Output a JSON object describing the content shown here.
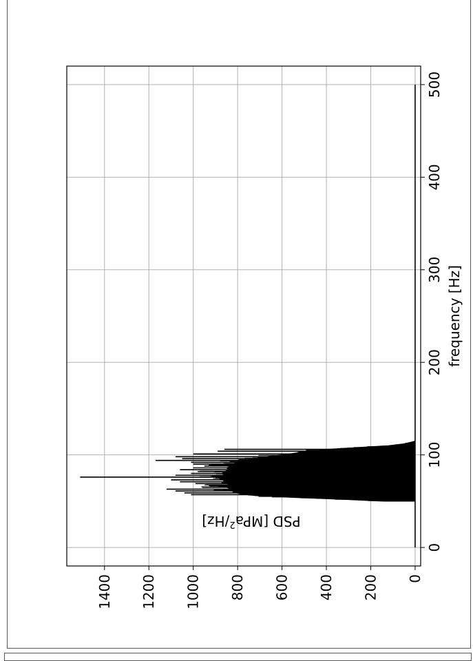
{
  "chart_data": {
    "type": "line",
    "orientation": "rotated-90",
    "xlabel": "frequency [Hz]",
    "ylabel_main": "PSD [MPa",
    "ylabel_sup": "2",
    "ylabel_tail": "/Hz]",
    "xlim": [
      -20,
      520
    ],
    "ylim": [
      -25,
      1570
    ],
    "x_ticks": [
      0,
      100,
      200,
      300,
      400,
      500
    ],
    "y_ticks": [
      0,
      200,
      400,
      600,
      800,
      1000,
      1200,
      1400
    ],
    "grid": true,
    "series_color": "#000000",
    "band_start_hz": 50,
    "band_end_hz": 115,
    "band_envelope": [
      {
        "x": 50,
        "y": 150
      },
      {
        "x": 52,
        "y": 330
      },
      {
        "x": 54,
        "y": 550
      },
      {
        "x": 56,
        "y": 720
      },
      {
        "x": 58,
        "y": 790
      },
      {
        "x": 60,
        "y": 820
      },
      {
        "x": 62,
        "y": 830
      },
      {
        "x": 64,
        "y": 840
      },
      {
        "x": 66,
        "y": 860
      },
      {
        "x": 68,
        "y": 840
      },
      {
        "x": 70,
        "y": 870
      },
      {
        "x": 72,
        "y": 860
      },
      {
        "x": 74,
        "y": 880
      },
      {
        "x": 76,
        "y": 870
      },
      {
        "x": 78,
        "y": 860
      },
      {
        "x": 80,
        "y": 870
      },
      {
        "x": 82,
        "y": 860
      },
      {
        "x": 84,
        "y": 840
      },
      {
        "x": 86,
        "y": 850
      },
      {
        "x": 88,
        "y": 830
      },
      {
        "x": 90,
        "y": 820
      },
      {
        "x": 92,
        "y": 800
      },
      {
        "x": 94,
        "y": 760
      },
      {
        "x": 96,
        "y": 720
      },
      {
        "x": 98,
        "y": 680
      },
      {
        "x": 100,
        "y": 600
      },
      {
        "x": 102,
        "y": 540
      },
      {
        "x": 104,
        "y": 480
      },
      {
        "x": 106,
        "y": 400
      },
      {
        "x": 108,
        "y": 260
      },
      {
        "x": 110,
        "y": 120
      },
      {
        "x": 112,
        "y": 50
      },
      {
        "x": 114,
        "y": 15
      },
      {
        "x": 115,
        "y": 0
      }
    ],
    "spikes": [
      {
        "x": 57,
        "y": 1010
      },
      {
        "x": 59,
        "y": 1040
      },
      {
        "x": 61,
        "y": 1080
      },
      {
        "x": 63,
        "y": 1120
      },
      {
        "x": 65,
        "y": 960
      },
      {
        "x": 67,
        "y": 930
      },
      {
        "x": 69,
        "y": 990
      },
      {
        "x": 71,
        "y": 1060
      },
      {
        "x": 73,
        "y": 1100
      },
      {
        "x": 76,
        "y": 1510
      },
      {
        "x": 78,
        "y": 1080
      },
      {
        "x": 80,
        "y": 1010
      },
      {
        "x": 82,
        "y": 980
      },
      {
        "x": 84,
        "y": 1060
      },
      {
        "x": 86,
        "y": 1000
      },
      {
        "x": 88,
        "y": 950
      },
      {
        "x": 90,
        "y": 1000
      },
      {
        "x": 92,
        "y": 1010
      },
      {
        "x": 94,
        "y": 1170
      },
      {
        "x": 96,
        "y": 1050
      },
      {
        "x": 98,
        "y": 1080
      },
      {
        "x": 101,
        "y": 1000
      },
      {
        "x": 104,
        "y": 890
      },
      {
        "x": 106,
        "y": 860
      }
    ]
  }
}
